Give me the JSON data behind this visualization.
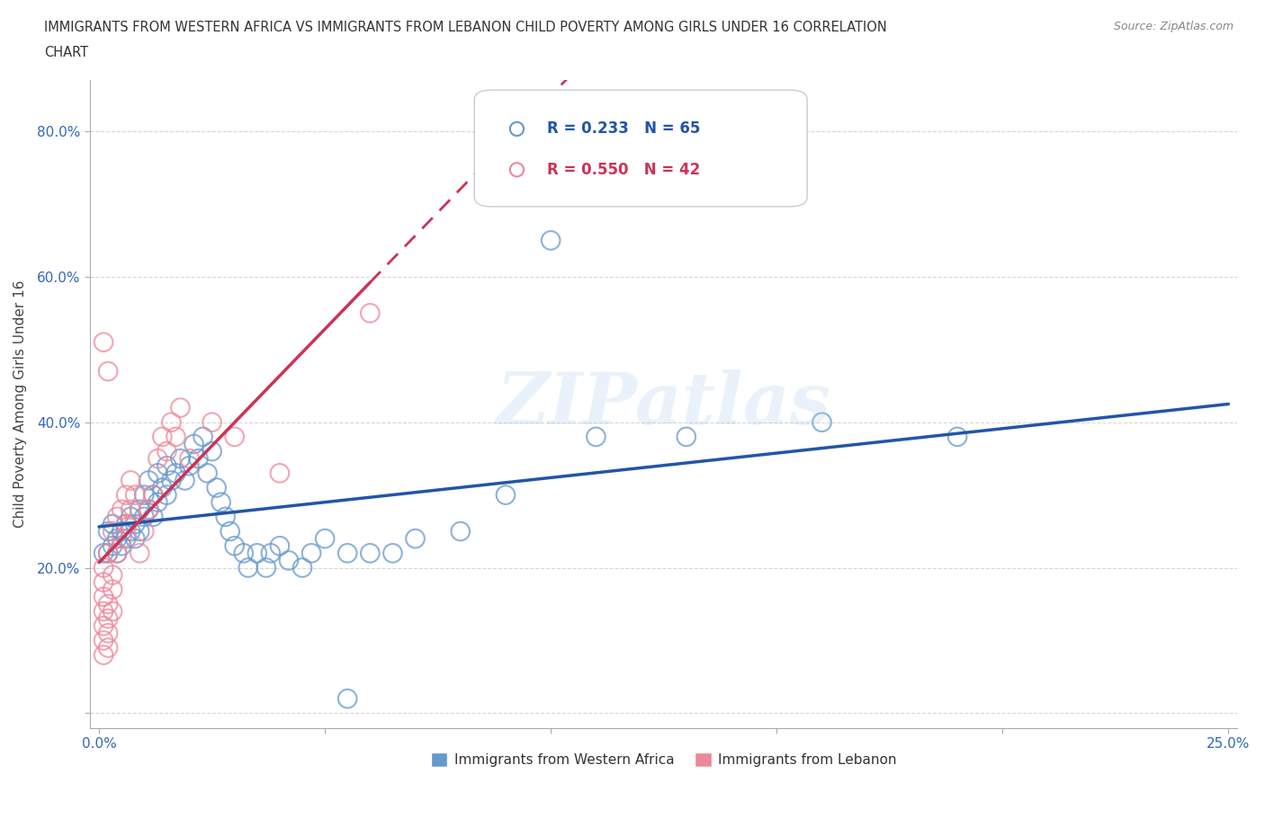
{
  "title_line1": "IMMIGRANTS FROM WESTERN AFRICA VS IMMIGRANTS FROM LEBANON CHILD POVERTY AMONG GIRLS UNDER 16 CORRELATION",
  "title_line2": "CHART",
  "source": "Source: ZipAtlas.com",
  "ylabel": "Child Poverty Among Girls Under 16",
  "xlim": [
    -0.002,
    0.252
  ],
  "ylim": [
    -0.02,
    0.87
  ],
  "xticks": [
    0.0,
    0.05,
    0.1,
    0.15,
    0.2,
    0.25
  ],
  "yticks": [
    0.0,
    0.2,
    0.4,
    0.6,
    0.8
  ],
  "ytick_labels": [
    "",
    "20.0%",
    "40.0%",
    "60.0%",
    "80.0%"
  ],
  "xtick_labels": [
    "0.0%",
    "",
    "",
    "",
    "",
    "25.0%"
  ],
  "watermark": "ZIPatlas",
  "blue_color": "#6699CC",
  "pink_color": "#EE8899",
  "blue_line_color": "#2255AA",
  "pink_line_color": "#CC3355",
  "blue_R": 0.233,
  "blue_N": 65,
  "pink_R": 0.55,
  "pink_N": 42,
  "legend_label_blue": "Immigrants from Western Africa",
  "legend_label_pink": "Immigrants from Lebanon",
  "blue_scatter": [
    [
      0.001,
      0.22
    ],
    [
      0.002,
      0.22
    ],
    [
      0.002,
      0.25
    ],
    [
      0.003,
      0.23
    ],
    [
      0.003,
      0.26
    ],
    [
      0.004,
      0.22
    ],
    [
      0.004,
      0.24
    ],
    [
      0.005,
      0.23
    ],
    [
      0.005,
      0.25
    ],
    [
      0.006,
      0.24
    ],
    [
      0.006,
      0.26
    ],
    [
      0.007,
      0.25
    ],
    [
      0.007,
      0.27
    ],
    [
      0.008,
      0.24
    ],
    [
      0.008,
      0.26
    ],
    [
      0.009,
      0.25
    ],
    [
      0.009,
      0.28
    ],
    [
      0.01,
      0.27
    ],
    [
      0.01,
      0.3
    ],
    [
      0.011,
      0.28
    ],
    [
      0.011,
      0.32
    ],
    [
      0.012,
      0.3
    ],
    [
      0.012,
      0.27
    ],
    [
      0.013,
      0.29
    ],
    [
      0.013,
      0.33
    ],
    [
      0.014,
      0.31
    ],
    [
      0.015,
      0.3
    ],
    [
      0.015,
      0.34
    ],
    [
      0.016,
      0.32
    ],
    [
      0.017,
      0.33
    ],
    [
      0.018,
      0.35
    ],
    [
      0.019,
      0.32
    ],
    [
      0.02,
      0.34
    ],
    [
      0.021,
      0.37
    ],
    [
      0.022,
      0.35
    ],
    [
      0.023,
      0.38
    ],
    [
      0.024,
      0.33
    ],
    [
      0.025,
      0.36
    ],
    [
      0.026,
      0.31
    ],
    [
      0.027,
      0.29
    ],
    [
      0.028,
      0.27
    ],
    [
      0.029,
      0.25
    ],
    [
      0.03,
      0.23
    ],
    [
      0.032,
      0.22
    ],
    [
      0.033,
      0.2
    ],
    [
      0.035,
      0.22
    ],
    [
      0.037,
      0.2
    ],
    [
      0.038,
      0.22
    ],
    [
      0.04,
      0.23
    ],
    [
      0.042,
      0.21
    ],
    [
      0.045,
      0.2
    ],
    [
      0.047,
      0.22
    ],
    [
      0.05,
      0.24
    ],
    [
      0.055,
      0.22
    ],
    [
      0.06,
      0.22
    ],
    [
      0.065,
      0.22
    ],
    [
      0.07,
      0.24
    ],
    [
      0.08,
      0.25
    ],
    [
      0.09,
      0.3
    ],
    [
      0.1,
      0.65
    ],
    [
      0.11,
      0.38
    ],
    [
      0.13,
      0.38
    ],
    [
      0.16,
      0.4
    ],
    [
      0.19,
      0.38
    ],
    [
      0.055,
      0.02
    ]
  ],
  "pink_scatter": [
    [
      0.001,
      0.16
    ],
    [
      0.001,
      0.14
    ],
    [
      0.001,
      0.12
    ],
    [
      0.001,
      0.1
    ],
    [
      0.001,
      0.08
    ],
    [
      0.001,
      0.18
    ],
    [
      0.001,
      0.2
    ],
    [
      0.002,
      0.15
    ],
    [
      0.002,
      0.13
    ],
    [
      0.002,
      0.11
    ],
    [
      0.002,
      0.09
    ],
    [
      0.002,
      0.22
    ],
    [
      0.003,
      0.17
    ],
    [
      0.003,
      0.19
    ],
    [
      0.003,
      0.14
    ],
    [
      0.003,
      0.25
    ],
    [
      0.004,
      0.22
    ],
    [
      0.004,
      0.27
    ],
    [
      0.005,
      0.24
    ],
    [
      0.005,
      0.28
    ],
    [
      0.006,
      0.26
    ],
    [
      0.006,
      0.3
    ],
    [
      0.007,
      0.28
    ],
    [
      0.007,
      0.32
    ],
    [
      0.008,
      0.3
    ],
    [
      0.009,
      0.22
    ],
    [
      0.01,
      0.25
    ],
    [
      0.011,
      0.28
    ],
    [
      0.012,
      0.3
    ],
    [
      0.013,
      0.35
    ],
    [
      0.014,
      0.38
    ],
    [
      0.015,
      0.36
    ],
    [
      0.016,
      0.4
    ],
    [
      0.017,
      0.38
    ],
    [
      0.018,
      0.42
    ],
    [
      0.02,
      0.35
    ],
    [
      0.025,
      0.4
    ],
    [
      0.03,
      0.38
    ],
    [
      0.04,
      0.33
    ],
    [
      0.06,
      0.55
    ],
    [
      0.001,
      0.51
    ],
    [
      0.002,
      0.47
    ]
  ]
}
